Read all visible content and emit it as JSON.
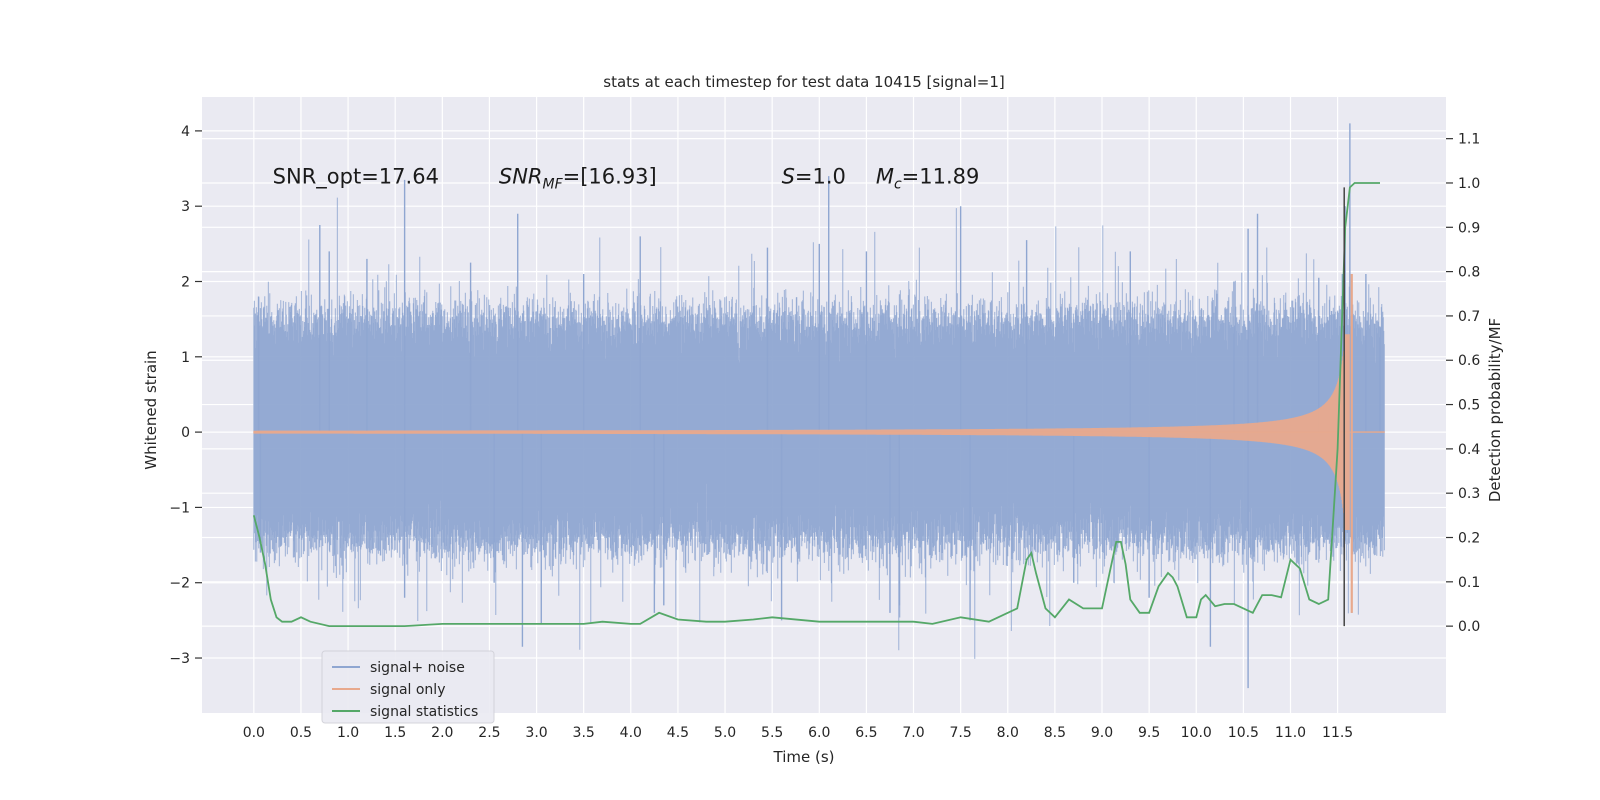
{
  "chart_data": {
    "type": "line",
    "title": "stats at each timestep for test data 10415 [signal=1]",
    "xlabel": "Time (s)",
    "ylabel": "Whitened strain",
    "ylabel_right": "Detection probability/MF",
    "xlim": [
      -0.55,
      12.65
    ],
    "ylim": [
      -3.73,
      4.45
    ],
    "ylim_right": [
      -0.196,
      1.194
    ],
    "x_ticks": [
      0.0,
      0.5,
      1.0,
      1.5,
      2.0,
      2.5,
      3.0,
      3.5,
      4.0,
      4.5,
      5.0,
      5.5,
      6.0,
      6.5,
      7.0,
      7.5,
      8.0,
      8.5,
      9.0,
      9.5,
      10.0,
      10.5,
      11.0,
      11.5
    ],
    "x_tick_labels": [
      "0.0",
      "0.5",
      "1.0",
      "1.5",
      "2.0",
      "2.5",
      "3.0",
      "3.5",
      "4.0",
      "4.5",
      "5.0",
      "5.5",
      "6.0",
      "6.5",
      "7.0",
      "7.5",
      "8.0",
      "8.5",
      "9.0",
      "9.5",
      "10.0",
      "10.5",
      "11.0",
      "11.5"
    ],
    "y_ticks": [
      -3,
      -2,
      -1,
      0,
      1,
      2,
      3,
      4
    ],
    "y_tick_labels": [
      "−3",
      "−2",
      "−1",
      "0",
      "1",
      "2",
      "3",
      "4"
    ],
    "y_ticks_right": [
      0.0,
      0.1,
      0.2,
      0.3,
      0.4,
      0.5,
      0.6,
      0.7,
      0.8,
      0.9,
      1.0,
      1.1
    ],
    "y_tick_labels_right": [
      "0.0",
      "0.1",
      "0.2",
      "0.3",
      "0.4",
      "0.5",
      "0.6",
      "0.7",
      "0.8",
      "0.9",
      "1.0",
      "1.1"
    ],
    "grid": true,
    "legend_position": "lower-left",
    "annotations": [
      {
        "text": "SNR_opt=17.64",
        "x": 0.2,
        "y": 3.3
      },
      {
        "text": "SNR_MF=[16.93]",
        "x": 2.6,
        "y": 3.3
      },
      {
        "text": "S=1.0",
        "x": 5.6,
        "y": 3.3
      },
      {
        "text": "M_c=11.89",
        "x": 6.6,
        "y": 3.3
      }
    ],
    "vertical_marker": {
      "x": 11.57,
      "y_right": [
        0.0,
        0.99
      ]
    },
    "series": [
      {
        "name": "signal+ noise",
        "color": "#8fa6d1",
        "x_range": [
          0.0,
          12.0
        ],
        "typical_band": [
          -1.45,
          1.5
        ],
        "spike_points": [
          [
            0.05,
            1.8
          ],
          [
            0.07,
            -1.6
          ],
          [
            0.7,
            2.75
          ],
          [
            0.8,
            2.4
          ],
          [
            1.2,
            2.3
          ],
          [
            1.6,
            3.35
          ],
          [
            1.6,
            -2.2
          ],
          [
            2.3,
            2.25
          ],
          [
            2.55,
            -2.0
          ],
          [
            2.8,
            2.9
          ],
          [
            2.85,
            -2.85
          ],
          [
            3.05,
            -2.55
          ],
          [
            3.5,
            2.1
          ],
          [
            4.1,
            2.6
          ],
          [
            4.25,
            -2.4
          ],
          [
            4.35,
            -2.3
          ],
          [
            5.45,
            2.45
          ],
          [
            5.6,
            -2.5
          ],
          [
            6.0,
            2.5
          ],
          [
            6.1,
            3.4
          ],
          [
            6.5,
            2.4
          ],
          [
            6.75,
            -2.4
          ],
          [
            6.85,
            -2.3
          ],
          [
            7.5,
            3.0
          ],
          [
            7.6,
            -2.5
          ],
          [
            8.2,
            2.55
          ],
          [
            8.7,
            -2.0
          ],
          [
            9.3,
            2.4
          ],
          [
            9.5,
            -2.2
          ],
          [
            10.15,
            -2.85
          ],
          [
            10.4,
            2.0
          ],
          [
            10.55,
            2.7
          ],
          [
            10.55,
            -3.4
          ],
          [
            10.65,
            2.9
          ],
          [
            11.3,
            2.05
          ],
          [
            11.55,
            2.1
          ],
          [
            11.58,
            3.0
          ],
          [
            11.63,
            4.1
          ],
          [
            11.65,
            -2.4
          ],
          [
            11.8,
            2.1
          ],
          [
            11.95,
            1.4
          ]
        ]
      },
      {
        "name": "signal only",
        "color": "#e8a98d",
        "x_range": [
          0.0,
          12.0
        ],
        "chirp": {
          "t_merger": 11.65,
          "pre_merger_amplitude": [
            0.02,
            0.1,
            0.2,
            0.4,
            0.8,
            1.3
          ],
          "peak": [
            2.1,
            -2.4
          ]
        }
      },
      {
        "name": "signal statistics",
        "color": "#55a868",
        "x": [
          0.0,
          0.06,
          0.12,
          0.18,
          0.24,
          0.3,
          0.4,
          0.5,
          0.6,
          0.8,
          1.0,
          1.4,
          1.6,
          2.0,
          2.5,
          3.0,
          3.5,
          3.7,
          4.0,
          4.1,
          4.3,
          4.5,
          4.8,
          5.0,
          5.3,
          5.5,
          6.0,
          6.3,
          6.6,
          7.0,
          7.2,
          7.5,
          7.8,
          8.0,
          8.1,
          8.2,
          8.25,
          8.3,
          8.4,
          8.5,
          8.65,
          8.8,
          9.0,
          9.15,
          9.2,
          9.25,
          9.3,
          9.4,
          9.5,
          9.6,
          9.7,
          9.75,
          9.8,
          9.9,
          10.0,
          10.05,
          10.1,
          10.2,
          10.3,
          10.4,
          10.5,
          10.6,
          10.7,
          10.8,
          10.9,
          11.0,
          11.1,
          11.2,
          11.3,
          11.4,
          11.5,
          11.58,
          11.63,
          11.68,
          11.75,
          11.85,
          11.95
        ],
        "y": [
          0.25,
          0.2,
          0.14,
          0.06,
          0.02,
          0.01,
          0.01,
          0.02,
          0.01,
          0.0,
          0.0,
          0.0,
          0.0,
          0.005,
          0.005,
          0.005,
          0.005,
          0.01,
          0.005,
          0.005,
          0.03,
          0.015,
          0.01,
          0.01,
          0.015,
          0.02,
          0.01,
          0.01,
          0.01,
          0.01,
          0.005,
          0.02,
          0.01,
          0.03,
          0.04,
          0.15,
          0.165,
          0.12,
          0.04,
          0.02,
          0.06,
          0.04,
          0.04,
          0.19,
          0.19,
          0.14,
          0.06,
          0.03,
          0.03,
          0.09,
          0.12,
          0.11,
          0.09,
          0.02,
          0.02,
          0.06,
          0.07,
          0.045,
          0.05,
          0.05,
          0.04,
          0.03,
          0.07,
          0.07,
          0.065,
          0.15,
          0.13,
          0.06,
          0.05,
          0.06,
          0.4,
          0.9,
          0.99,
          1.0,
          1.0,
          1.0,
          1.0
        ]
      }
    ]
  }
}
